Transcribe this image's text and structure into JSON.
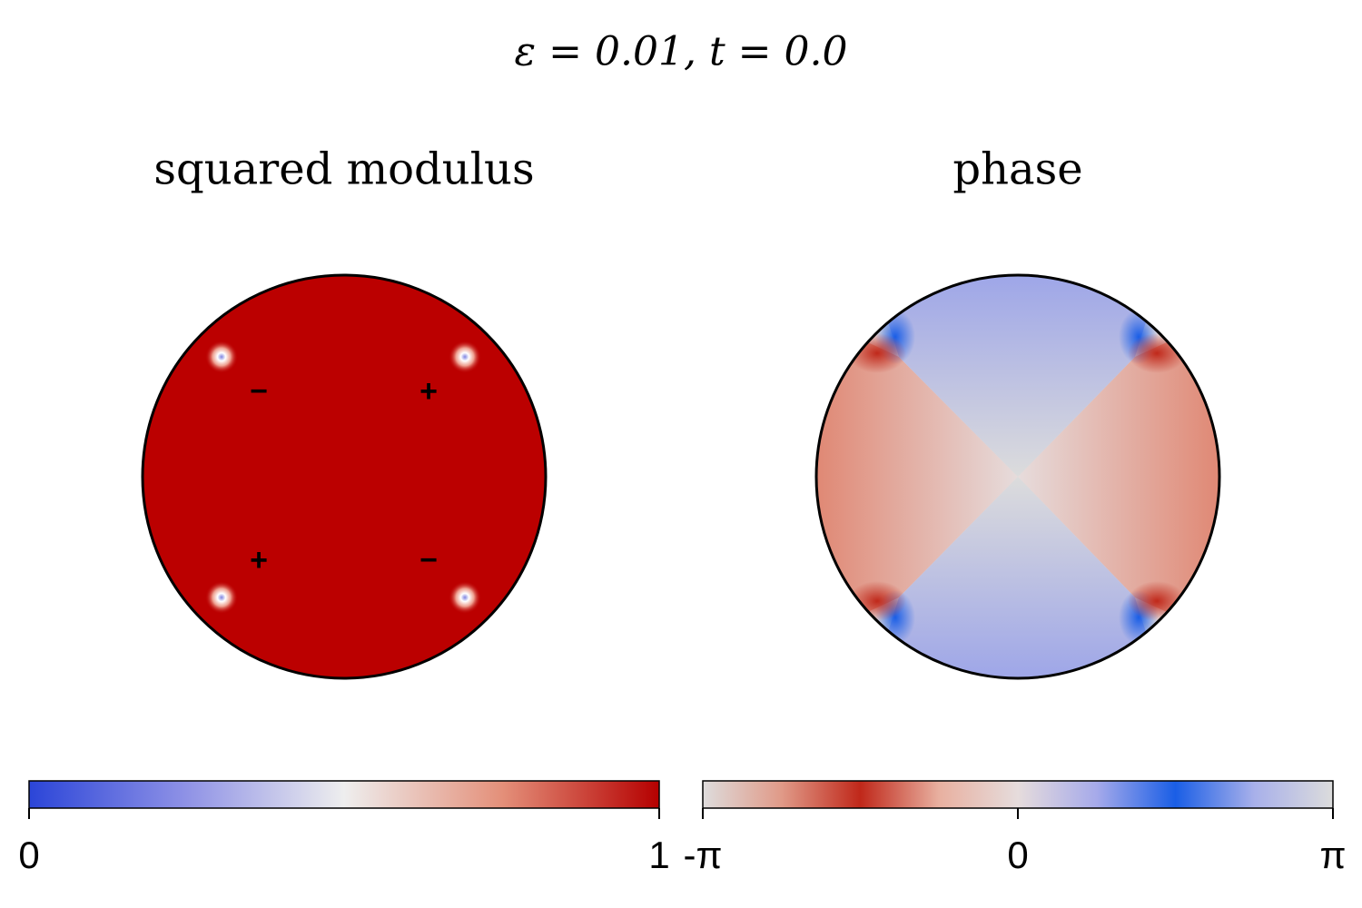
{
  "title": "ε = 0.01,    t = 0.0",
  "chart_data": [
    {
      "type": "modulus",
      "title": "squared modulus",
      "colormap": [
        "#2b45d8",
        "#8f92e6",
        "#eeeeee",
        "#e4907a",
        "#b50000"
      ],
      "color": "#bb0000",
      "annotations": [
        "−",
        "+",
        "+",
        "−"
      ],
      "xlim": [
        0,
        1
      ],
      "xticks": [
        0,
        1
      ]
    },
    {
      "type": "phase",
      "title": "phase",
      "colormap": [
        "#dedcdc",
        "#e09a88",
        "#c0281a",
        "#e8b0a0",
        "#e6dcdc",
        "#a6aaea",
        "#1a5ee6",
        "#a8b0ea",
        "#dcdcdc"
      ],
      "xlim": [
        -3.141592653589793,
        3.141592653589793
      ],
      "xticks": [
        {
          "value": -3.141592653589793,
          "label": "-π"
        },
        0,
        {
          "value": 3.141592653589793,
          "label": "π"
        }
      ]
    }
  ]
}
